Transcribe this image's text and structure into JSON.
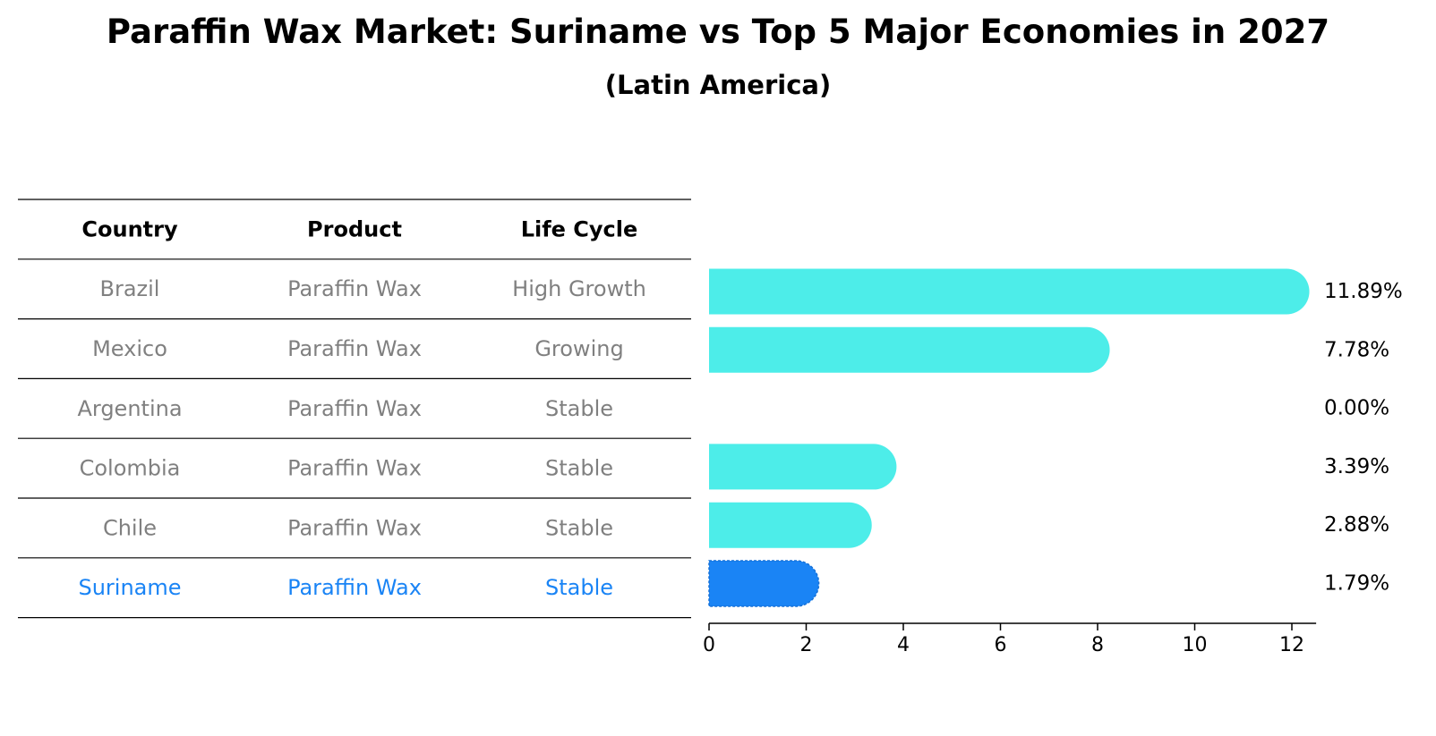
{
  "colors": {
    "bar": "#4dede9",
    "highlight": "#1a84f5",
    "row_text": "#808080",
    "header_text": "#000000",
    "rule": "#000000"
  },
  "chart_data": {
    "type": "bar",
    "orientation": "horizontal",
    "title": "Paraffin Wax Market: Suriname vs Top 5 Major Economies in 2027",
    "subtitle": "(Latin America)",
    "table": {
      "headers": [
        "Country",
        "Product",
        "Life Cycle"
      ],
      "rows": [
        {
          "country": "Brazil",
          "product": "Paraffin Wax",
          "life_cycle": "High Growth",
          "highlight": false
        },
        {
          "country": "Mexico",
          "product": "Paraffin Wax",
          "life_cycle": "Growing",
          "highlight": false
        },
        {
          "country": "Argentina",
          "product": "Paraffin Wax",
          "life_cycle": "Stable",
          "highlight": false
        },
        {
          "country": "Colombia",
          "product": "Paraffin Wax",
          "life_cycle": "Stable",
          "highlight": false
        },
        {
          "country": "Chile",
          "product": "Paraffin Wax",
          "life_cycle": "Stable",
          "highlight": false
        },
        {
          "country": "Suriname",
          "product": "Paraffin Wax",
          "life_cycle": "Stable",
          "highlight": true
        }
      ]
    },
    "categories": [
      "Brazil",
      "Mexico",
      "Argentina",
      "Colombia",
      "Chile",
      "Suriname"
    ],
    "values": [
      11.89,
      7.78,
      0.0,
      3.39,
      2.88,
      1.79
    ],
    "value_labels": [
      "11.89%",
      "7.78%",
      "0.00%",
      "3.39%",
      "2.88%",
      "1.79%"
    ],
    "xlim": [
      0,
      12.5
    ],
    "xticks": [
      0,
      2,
      4,
      6,
      8,
      10,
      12
    ],
    "xlabel": "",
    "ylabel": "",
    "grid": false
  }
}
